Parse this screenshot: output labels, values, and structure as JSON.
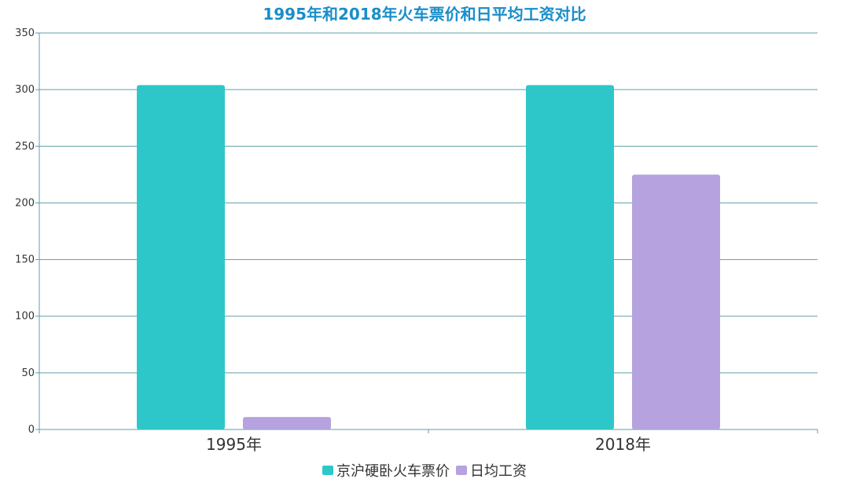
{
  "chart_data": {
    "type": "bar",
    "title": "1995年和2018年火车票价和日平均工资对比",
    "xlabel": "",
    "ylabel": "",
    "categories": [
      "1995年",
      "2018年"
    ],
    "series": [
      {
        "name": "京沪硬卧火车票价",
        "values": [
          304,
          304
        ]
      },
      {
        "name": "日均工资",
        "values": [
          11,
          225
        ]
      }
    ],
    "ylim": [
      0,
      350
    ],
    "yticks": [
      0,
      50,
      100,
      150,
      200,
      250,
      300,
      350
    ],
    "grid": true,
    "legend_position": "bottom-center"
  },
  "colors": {
    "title": "#1a8ec9",
    "series": [
      "#2ec7c9",
      "#b6a2de"
    ],
    "gridline": "#5f9ea8",
    "axis": "#5f9ea8"
  }
}
